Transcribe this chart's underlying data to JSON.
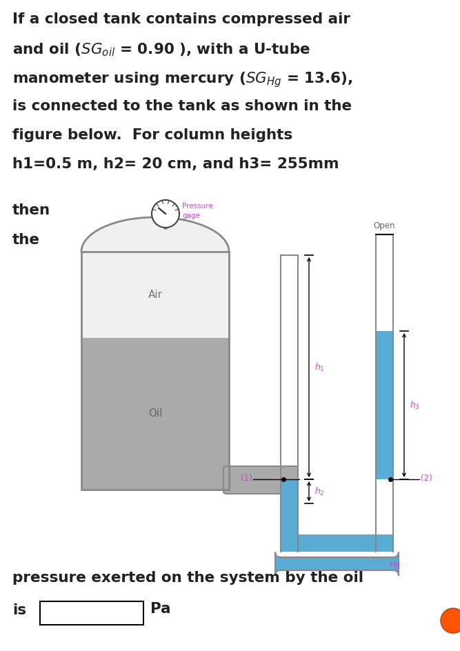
{
  "bottom_text1": "pressure exerted on the system by the oil",
  "bottom_text2": "is",
  "bottom_text3": "Pa",
  "label_air": "Air",
  "label_oil": "Oil",
  "label_pressure_gage": "Pressure\ngage",
  "label_open": "Open",
  "label_hg": "Hg",
  "label_1": "(1)",
  "label_2": "(2)",
  "color_oil_gray": "#aaaaaa",
  "color_air_white": "#f0f0f0",
  "color_tank_border": "#888888",
  "color_pipe_gray": "#aaaaaa",
  "color_mercury": "#5BACD4",
  "color_open_label": "#cc44cc",
  "color_hg_label": "#cc44cc",
  "color_point_label": "#cc44cc",
  "color_h_label": "#cc44cc",
  "bg_color": "#ffffff",
  "fig_width": 6.67,
  "fig_height": 9.44
}
